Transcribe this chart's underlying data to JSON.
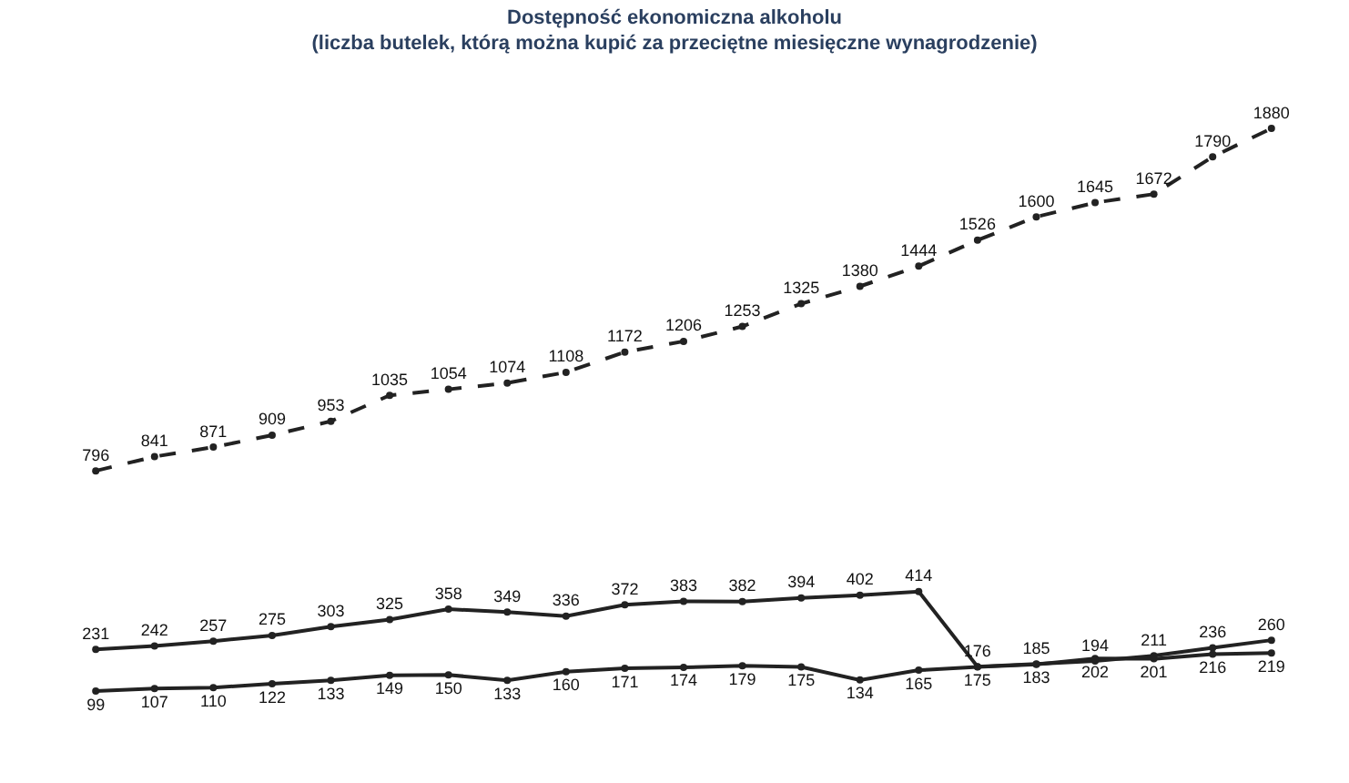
{
  "chart_data": {
    "type": "line",
    "title": "Dostępność ekonomiczna alkoholu",
    "subtitle": "(liczba butelek, którą można kupić za przeciętne miesięczne wynagrodzenie)",
    "categories": [
      null,
      null,
      null,
      null,
      null,
      null,
      null,
      null,
      null,
      null,
      null,
      null,
      null,
      null,
      null,
      null,
      null,
      null,
      null,
      null,
      null
    ],
    "series": [
      {
        "color": "#222222",
        "line_style": "dashed",
        "values": [
          796,
          841,
          871,
          909,
          953,
          1035,
          1054,
          1074,
          1108,
          1172,
          1206,
          1253,
          1325,
          1380,
          1444,
          1526,
          1600,
          1645,
          1672,
          1790,
          1880
        ]
      },
      {
        "color": "#222222",
        "values": [
          231,
          242,
          257,
          275,
          303,
          325,
          358,
          349,
          336,
          372,
          383,
          382,
          394,
          402,
          414,
          176,
          185,
          194,
          211,
          236,
          260
        ]
      },
      {
        "color": "#222222",
        "values": [
          99,
          107,
          110,
          122,
          133,
          149,
          150,
          133,
          160,
          171,
          174,
          179,
          175,
          134,
          165,
          175,
          183,
          202,
          201,
          216,
          219
        ]
      }
    ],
    "data_labels": true,
    "marker": "circle",
    "line_style": "solid",
    "grid": false,
    "tick_labels": false
  }
}
